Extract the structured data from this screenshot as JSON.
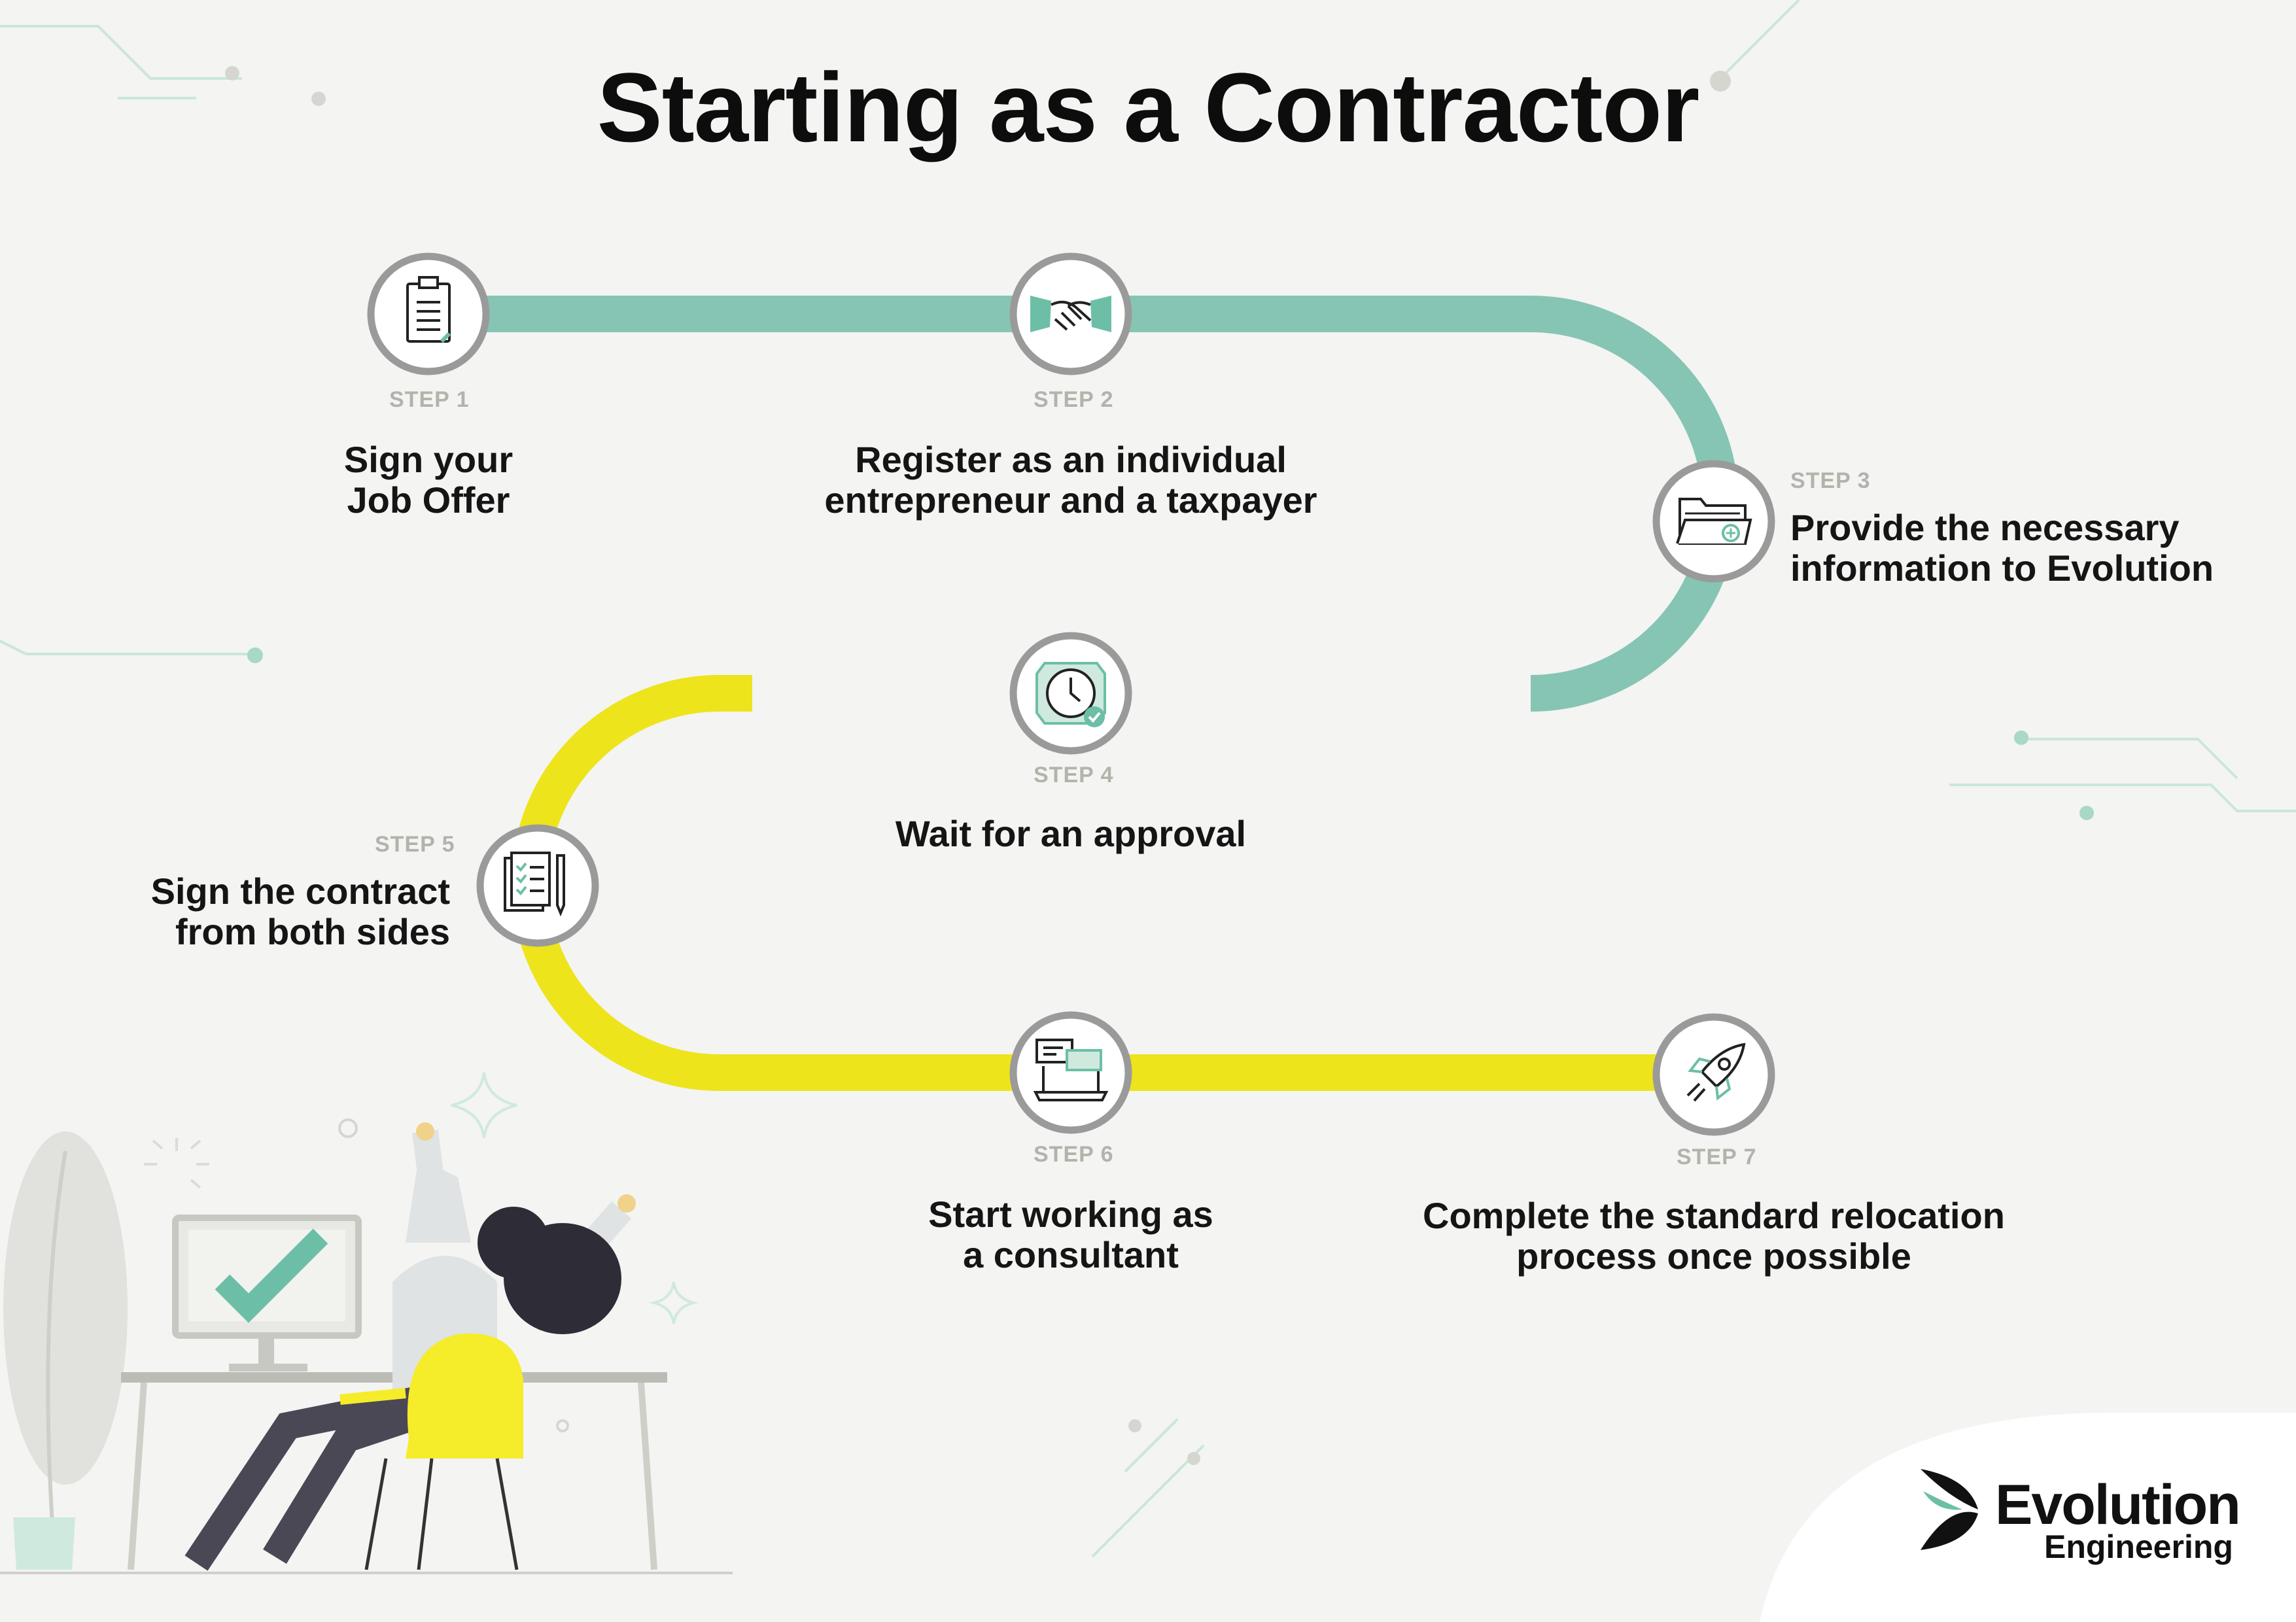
{
  "title": "Starting as a Contractor",
  "steps": [
    {
      "label": "STEP 1",
      "line1": "Sign your",
      "line2": "Job Offer",
      "icon": "clipboard-icon"
    },
    {
      "label": "STEP 2",
      "line1": "Register as an individual",
      "line2": "entrepreneur and a taxpayer",
      "icon": "handshake-icon"
    },
    {
      "label": "STEP 3",
      "line1": "Provide the necessary",
      "line2": "information to Evolution",
      "icon": "folder-icon"
    },
    {
      "label": "STEP 4",
      "line1": "Wait for an approval",
      "icon": "clock-icon"
    },
    {
      "label": "STEP 5",
      "line1": "Sign the contract",
      "line2": "from both sides",
      "icon": "contract-pen-icon"
    },
    {
      "label": "STEP 6",
      "line1": "Start working as",
      "line2": "a consultant",
      "icon": "laptop-chat-icon"
    },
    {
      "label": "STEP 7",
      "line1": "Complete the standard relocation",
      "line2": "process once possible",
      "icon": "rocket-icon"
    }
  ],
  "brand": {
    "name": "Evolution",
    "sub": "Engineering"
  },
  "colors": {
    "teal": "#86c5b3",
    "yellow": "#ede41c",
    "ring": "#9a9a9a",
    "bg": "#f4f4f2",
    "accent": "#6cbfa6"
  }
}
